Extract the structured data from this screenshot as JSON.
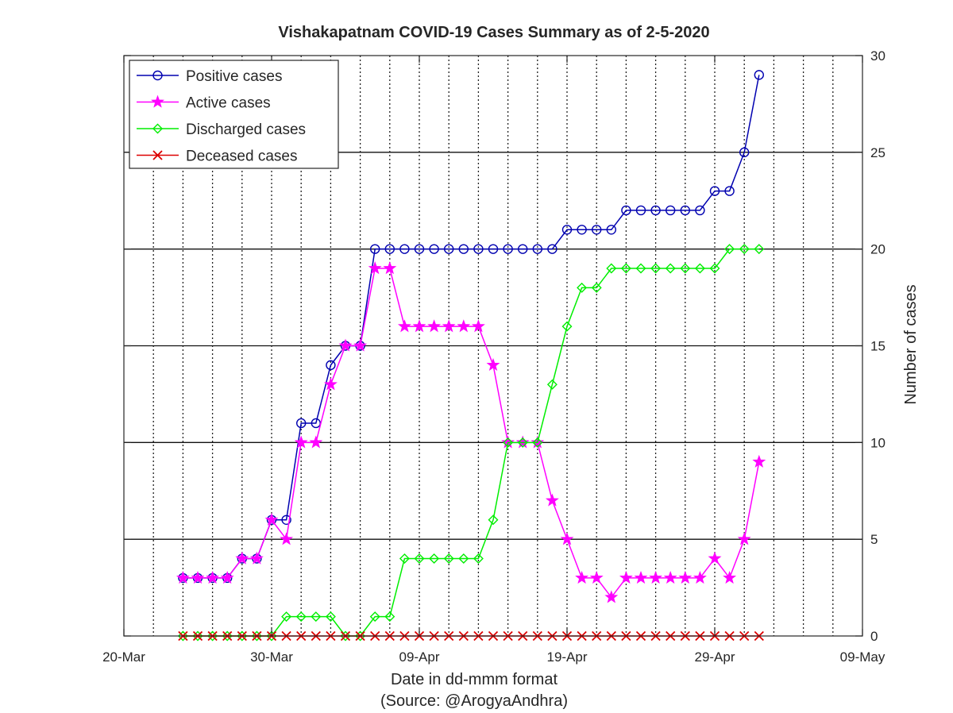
{
  "chart_data": {
    "type": "line",
    "title": "Vishakapatnam COVID-19 Cases Summary as of 2-5-2020",
    "xlabel": "Date in dd-mmm format",
    "xlabel_note": "(Source: @ArogyaAndhra)",
    "ylabel": "Number of cases",
    "xlim": [
      "2020-03-20",
      "2020-05-09"
    ],
    "ylim": [
      0,
      30
    ],
    "x_ticks": [
      {
        "date": "2020-03-20",
        "label": "20-Mar"
      },
      {
        "date": "2020-03-30",
        "label": "30-Mar"
      },
      {
        "date": "2020-04-09",
        "label": "09-Apr"
      },
      {
        "date": "2020-04-19",
        "label": "19-Apr"
      },
      {
        "date": "2020-04-29",
        "label": "29-Apr"
      },
      {
        "date": "2020-05-09",
        "label": "09-May"
      }
    ],
    "y_ticks": [
      0,
      5,
      10,
      15,
      20,
      25,
      30
    ],
    "y_axis_side": "right",
    "grid": "x-minor dotted every 2 days, y-major solid",
    "legend_position": "top-left",
    "x_start": "2020-03-24",
    "series": [
      {
        "name": "Positive cases",
        "color": "#0000b0",
        "marker": "circle",
        "values": [
          3,
          3,
          3,
          3,
          4,
          4,
          6,
          6,
          11,
          11,
          14,
          15,
          15,
          20,
          20,
          20,
          20,
          20,
          20,
          20,
          20,
          20,
          20,
          20,
          20,
          20,
          21,
          21,
          21,
          21,
          22,
          22,
          22,
          22,
          22,
          22,
          23,
          23,
          25,
          29
        ]
      },
      {
        "name": "Active cases",
        "color": "#ff00ff",
        "marker": "star",
        "values": [
          3,
          3,
          3,
          3,
          4,
          4,
          6,
          5,
          10,
          10,
          13,
          15,
          15,
          19,
          19,
          16,
          16,
          16,
          16,
          16,
          16,
          14,
          10,
          10,
          10,
          7,
          5,
          3,
          3,
          2,
          3,
          3,
          3,
          3,
          3,
          3,
          4,
          3,
          5,
          9
        ]
      },
      {
        "name": "Discharged cases",
        "color": "#00ee00",
        "marker": "diamond",
        "values": [
          0,
          0,
          0,
          0,
          0,
          0,
          0,
          1,
          1,
          1,
          1,
          0,
          0,
          1,
          1,
          4,
          4,
          4,
          4,
          4,
          4,
          6,
          10,
          10,
          10,
          13,
          16,
          18,
          18,
          19,
          19,
          19,
          19,
          19,
          19,
          19,
          19,
          20,
          20,
          20
        ]
      },
      {
        "name": "Deceased cases",
        "color": "#dd0000",
        "marker": "x",
        "values": [
          0,
          0,
          0,
          0,
          0,
          0,
          0,
          0,
          0,
          0,
          0,
          0,
          0,
          0,
          0,
          0,
          0,
          0,
          0,
          0,
          0,
          0,
          0,
          0,
          0,
          0,
          0,
          0,
          0,
          0,
          0,
          0,
          0,
          0,
          0,
          0,
          0,
          0,
          0,
          0
        ]
      }
    ]
  }
}
